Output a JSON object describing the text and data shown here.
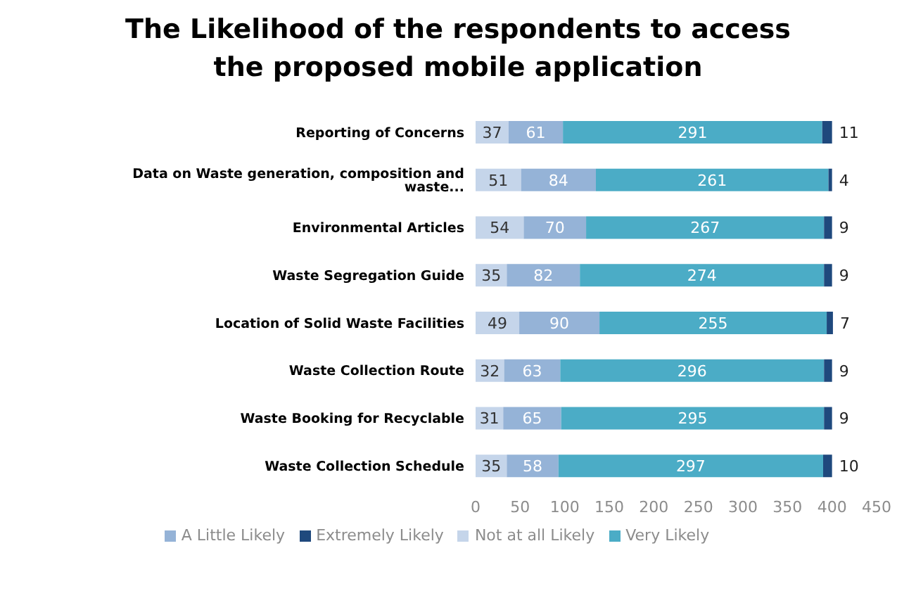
{
  "chart_data": {
    "type": "bar",
    "orientation": "horizontal",
    "stacked": true,
    "title": "The Likelihood of the respondents to access the proposed mobile application",
    "categories": [
      "Reporting of Concerns",
      "Data on Waste generation, composition and waste...",
      "Environmental Articles",
      "Waste Segregation Guide",
      "Location of Solid Waste Facilities",
      "Waste Collection Route",
      "Waste Booking for Recyclable",
      "Waste Collection Schedule"
    ],
    "series": [
      {
        "name": "Not at all Likely",
        "color": "#c5d5ea",
        "values": [
          37,
          51,
          54,
          35,
          49,
          32,
          31,
          35
        ]
      },
      {
        "name": "A Little Likely",
        "color": "#95b3d7",
        "values": [
          61,
          84,
          70,
          82,
          90,
          63,
          65,
          58
        ]
      },
      {
        "name": "Very Likely",
        "color": "#4bacc6",
        "values": [
          291,
          261,
          267,
          274,
          255,
          296,
          295,
          297
        ]
      },
      {
        "name": "Extremely Likely",
        "color": "#1f497d",
        "values": [
          11,
          4,
          9,
          9,
          7,
          9,
          9,
          10
        ]
      }
    ],
    "xlim": [
      0,
      450
    ],
    "xticks": [
      0,
      50,
      100,
      150,
      200,
      250,
      300,
      350,
      400,
      450
    ],
    "data_labels": true,
    "legend": "bottom",
    "grid": false
  }
}
